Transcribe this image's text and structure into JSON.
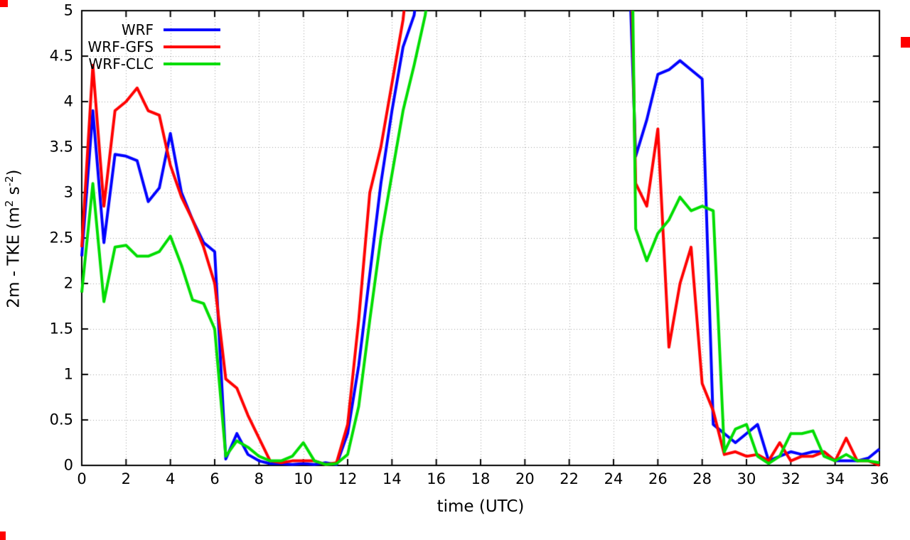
{
  "chart_data": {
    "type": "line",
    "title": "",
    "xlabel": "time (UTC)",
    "ylabel": "2m - TKE (m^2 s^-2)",
    "ylabel_parts": {
      "p1": "2m - TKE (m",
      "sup1": "2",
      "p2": " s",
      "sup2": "-2",
      "p3": ")"
    },
    "xlim": [
      0,
      36
    ],
    "ylim": [
      0,
      5
    ],
    "xtick_labels": [
      "0",
      "2",
      "4",
      "6",
      "8",
      "10",
      "12",
      "14",
      "16",
      "18",
      "20",
      "22",
      "24",
      "26",
      "28",
      "30",
      "32",
      "34",
      "36"
    ],
    "ytick_labels": [
      "0",
      "0.5",
      "1",
      "1.5",
      "2",
      "2.5",
      "3",
      "3.5",
      "4",
      "4.5",
      "5"
    ],
    "grid": true,
    "grid_color": "#a0a0a0",
    "legend_position": "top-left inside",
    "x": [
      0,
      0.5,
      1,
      1.5,
      2,
      2.5,
      3,
      3.5,
      4,
      4.5,
      5,
      5.5,
      6,
      6.5,
      7,
      7.5,
      8,
      8.5,
      9,
      9.5,
      10,
      10.5,
      11,
      11.5,
      12,
      12.5,
      13,
      13.5,
      14,
      14.5,
      15,
      15.5,
      16,
      16.5,
      17,
      17.5,
      18,
      18.5,
      19,
      19.5,
      20,
      20.5,
      21,
      21.5,
      22,
      22.5,
      23,
      23.5,
      24,
      24.5,
      25,
      25.5,
      26,
      26.5,
      27,
      27.5,
      28,
      28.5,
      29,
      29.5,
      30,
      30.5,
      31,
      31.5,
      32,
      32.5,
      33,
      33.5,
      34,
      34.5,
      35,
      35.5,
      36
    ],
    "series": [
      {
        "name": "WRF",
        "color": "#0000ff",
        "values": [
          2.3,
          3.9,
          2.45,
          3.42,
          3.4,
          3.35,
          2.9,
          3.05,
          3.65,
          3.0,
          2.7,
          2.45,
          2.35,
          0.07,
          0.35,
          0.12,
          0.05,
          0.02,
          0.02,
          0.01,
          0.02,
          0.01,
          0.03,
          0.01,
          0.35,
          1.1,
          2.1,
          3.1,
          3.9,
          4.6,
          4.95,
          5.9,
          null,
          null,
          null,
          null,
          null,
          null,
          null,
          null,
          null,
          null,
          null,
          null,
          null,
          null,
          null,
          null,
          null,
          7.0,
          3.4,
          3.8,
          4.3,
          4.35,
          4.45,
          4.35,
          4.25,
          0.45,
          0.35,
          0.25,
          0.35,
          0.45,
          0.05,
          0.1,
          0.15,
          0.12,
          0.15,
          0.15,
          0.05,
          0.05,
          0.05,
          0.08,
          0.18
        ]
      },
      {
        "name": "WRF-GFS",
        "color": "#ff0000",
        "values": [
          2.4,
          4.4,
          2.85,
          3.9,
          4.0,
          4.15,
          3.9,
          3.85,
          3.3,
          2.95,
          2.7,
          2.4,
          2.0,
          0.95,
          0.85,
          0.55,
          0.3,
          0.05,
          0.03,
          0.05,
          0.05,
          0.05,
          0.01,
          0.03,
          0.45,
          1.6,
          3.0,
          3.5,
          4.2,
          4.9,
          6.0,
          null,
          null,
          null,
          null,
          null,
          null,
          null,
          null,
          null,
          null,
          null,
          null,
          null,
          null,
          null,
          null,
          null,
          null,
          9.0,
          3.1,
          2.85,
          3.7,
          1.3,
          2.0,
          2.4,
          0.9,
          0.6,
          0.12,
          0.15,
          0.1,
          0.12,
          0.05,
          0.25,
          0.05,
          0.1,
          0.1,
          0.15,
          0.05,
          0.3,
          0.05,
          0.05,
          0.0
        ]
      },
      {
        "name": "WRF-CLC",
        "color": "#00dd00",
        "values": [
          1.9,
          3.1,
          1.8,
          2.4,
          2.42,
          2.3,
          2.3,
          2.35,
          2.52,
          2.2,
          1.82,
          1.78,
          1.5,
          0.1,
          0.27,
          0.2,
          0.1,
          0.05,
          0.05,
          0.1,
          0.25,
          0.05,
          0.01,
          0.02,
          0.12,
          0.65,
          1.6,
          2.5,
          3.2,
          3.9,
          4.4,
          4.95,
          5.8,
          null,
          null,
          null,
          null,
          null,
          null,
          null,
          null,
          null,
          null,
          null,
          null,
          null,
          null,
          null,
          null,
          12.0,
          2.6,
          2.25,
          2.55,
          2.7,
          2.95,
          2.8,
          2.85,
          2.8,
          0.15,
          0.4,
          0.45,
          0.1,
          0.02,
          0.1,
          0.35,
          0.35,
          0.38,
          0.1,
          0.05,
          0.12,
          0.05,
          0.05,
          0.03
        ]
      }
    ]
  },
  "artifacts": {
    "mark_color": "#ff0000"
  }
}
